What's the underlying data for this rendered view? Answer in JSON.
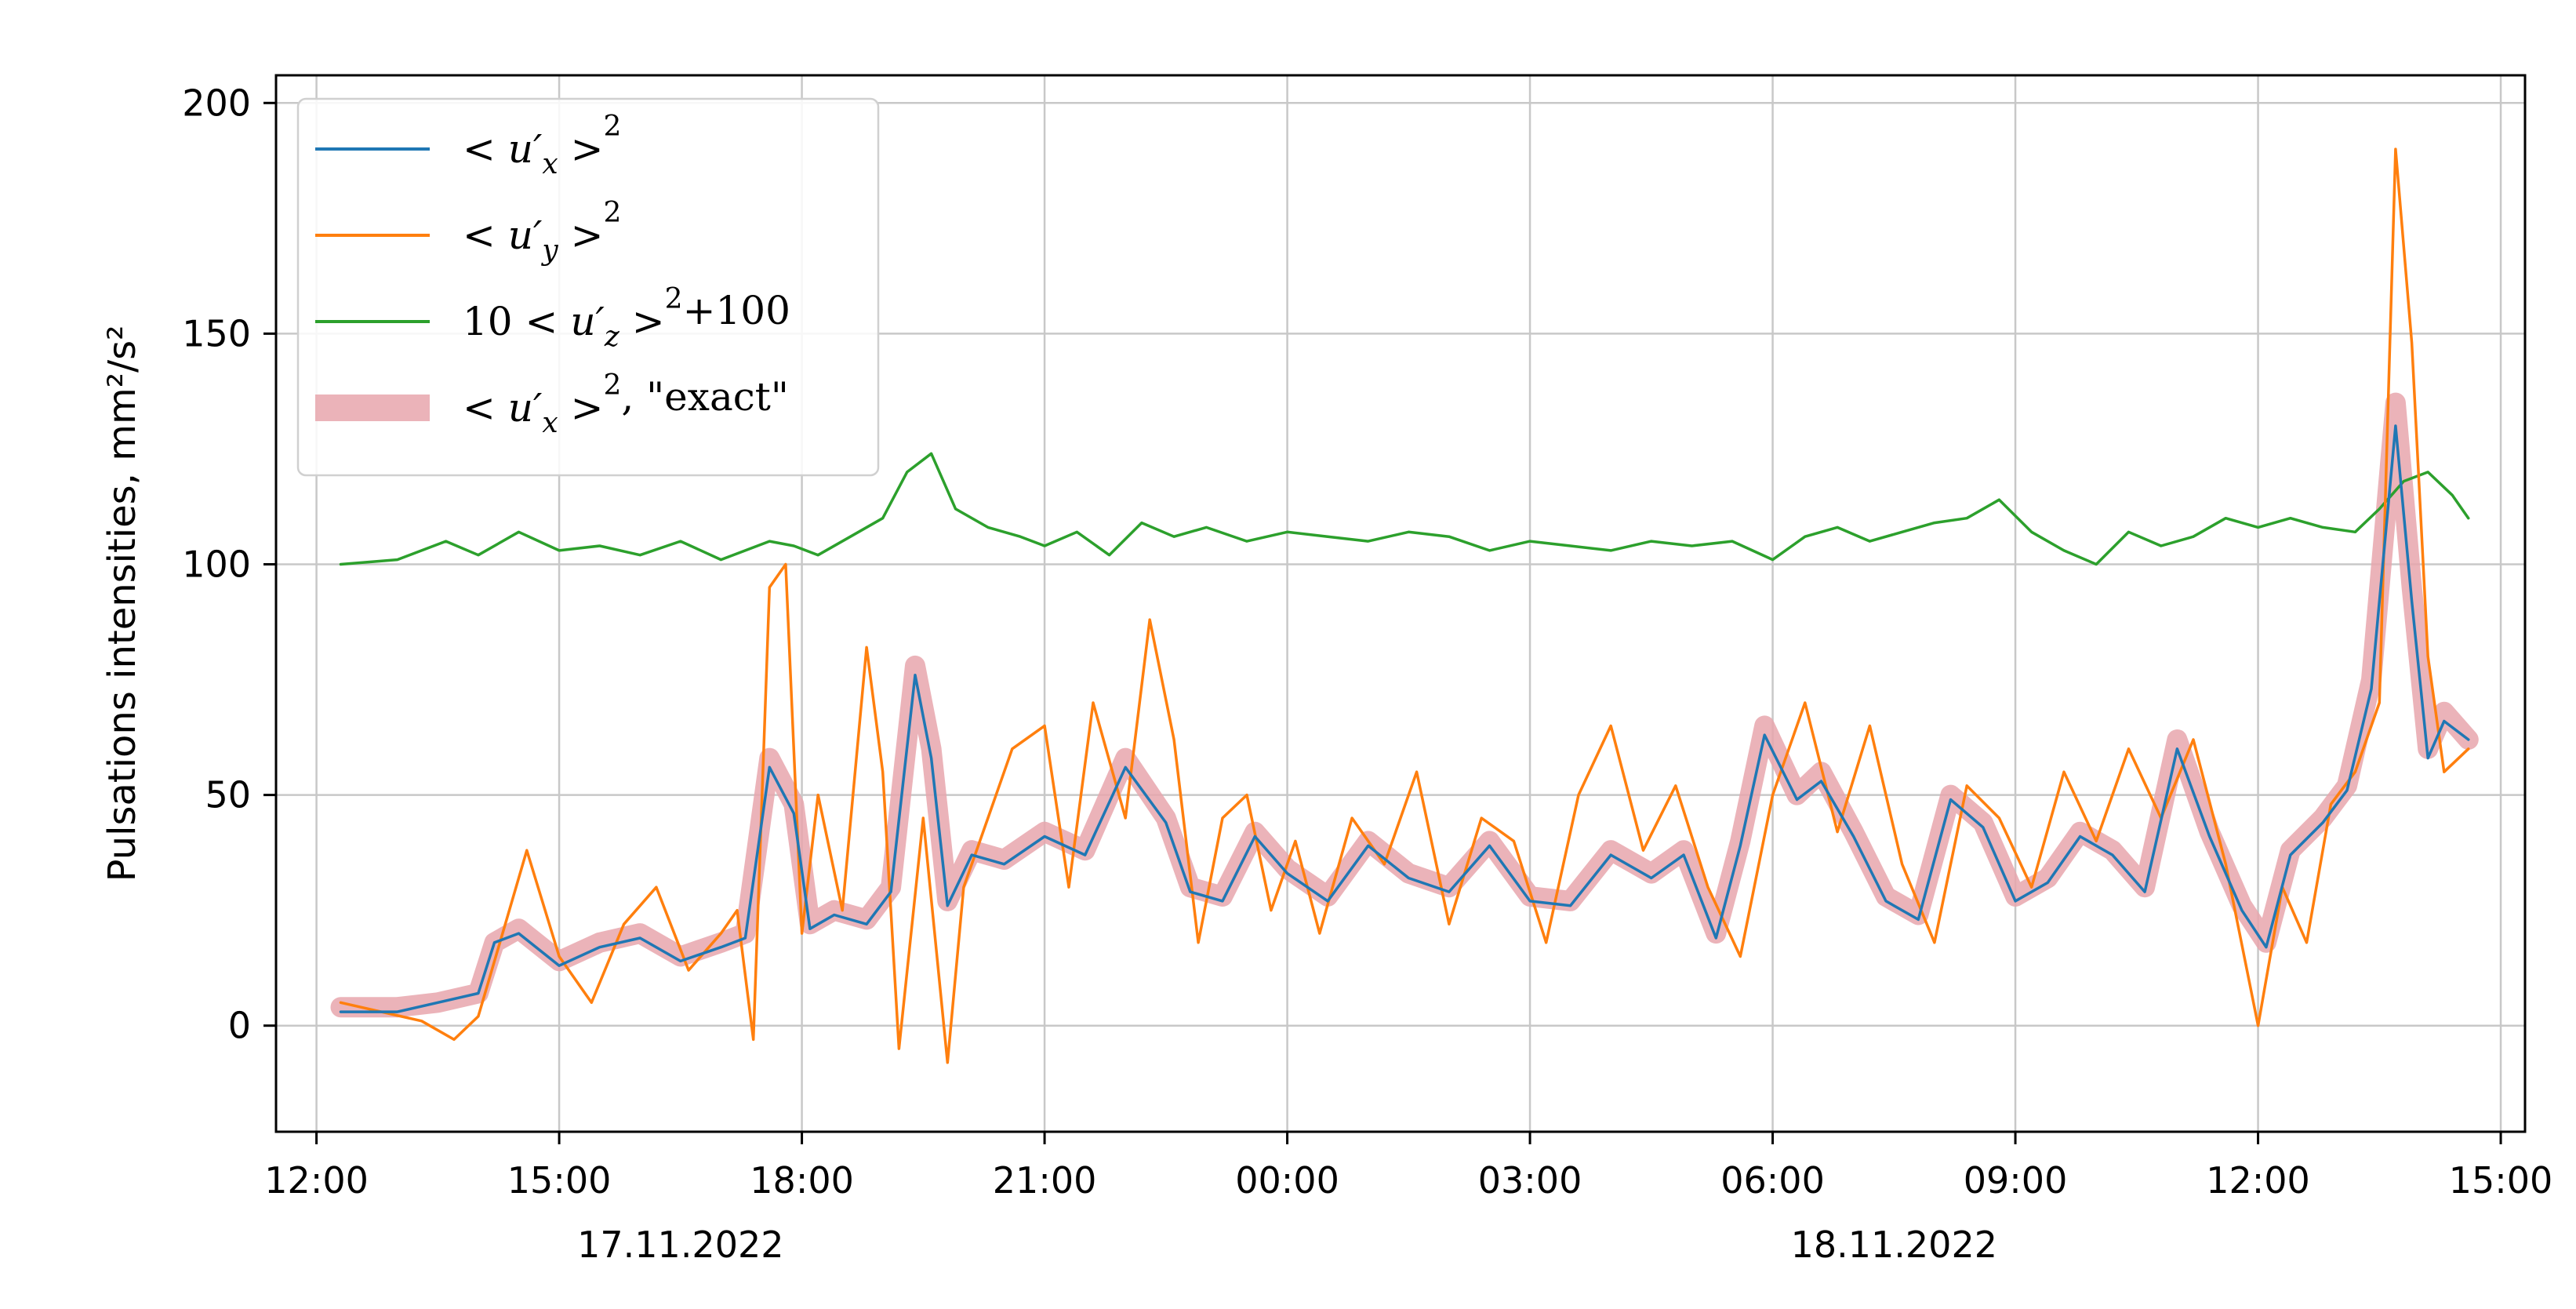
{
  "chart_data": {
    "type": "line",
    "ylabel": "Pulsations intensities, mm²/s²",
    "xlabel": "",
    "ylim": [
      -23,
      206
    ],
    "yticks": [
      0,
      50,
      100,
      150,
      200
    ],
    "xlim_hours": [
      11.5,
      39.3
    ],
    "x_unit": "hours since 17.11.2022 00:00",
    "xtick_labels": [
      "12:00",
      "15:00",
      "18:00",
      "21:00",
      "00:00",
      "03:00",
      "06:00",
      "09:00",
      "12:00",
      "15:00"
    ],
    "xtick_hours": [
      12,
      15,
      18,
      21,
      24,
      27,
      30,
      33,
      36,
      39
    ],
    "date_labels": [
      {
        "text": "17.11.2022",
        "at_hours": 16.5
      },
      {
        "text": "18.11.2022",
        "at_hours": 31.5
      }
    ],
    "grid": true,
    "legend_position": "top-left",
    "colors": {
      "ux": "#1f77b4",
      "uy": "#ff7f0e",
      "uz": "#2ca02c",
      "exact": "#e8a6ad"
    },
    "series": [
      {
        "name": "< u'x >², \"exact\"",
        "key": "exact",
        "x": [
          12.3,
          13.0,
          13.5,
          14.0,
          14.2,
          14.5,
          15.0,
          15.5,
          16.0,
          16.5,
          17.0,
          17.3,
          17.6,
          17.9,
          18.1,
          18.4,
          18.8,
          19.1,
          19.4,
          19.6,
          19.8,
          20.1,
          20.5,
          21.0,
          21.5,
          22.0,
          22.5,
          22.8,
          23.2,
          23.6,
          24.0,
          24.5,
          25.0,
          25.5,
          26.0,
          26.5,
          27.0,
          27.5,
          28.0,
          28.5,
          28.9,
          29.3,
          29.6,
          29.9,
          30.3,
          30.6,
          31.0,
          31.4,
          31.8,
          32.2,
          32.6,
          33.0,
          33.4,
          33.8,
          34.2,
          34.6,
          35.0,
          35.4,
          35.8,
          36.1,
          36.4,
          36.8,
          37.1,
          37.4,
          37.7,
          37.9,
          38.1,
          38.3,
          38.6
        ],
        "values": [
          4,
          4,
          5,
          7,
          18,
          21,
          14,
          18,
          20,
          15,
          18,
          20,
          58,
          48,
          22,
          25,
          23,
          30,
          78,
          60,
          27,
          38,
          36,
          42,
          38,
          58,
          45,
          30,
          28,
          42,
          34,
          28,
          40,
          33,
          30,
          40,
          28,
          27,
          38,
          33,
          38,
          20,
          40,
          65,
          50,
          55,
          42,
          28,
          24,
          50,
          44,
          28,
          32,
          42,
          38,
          30,
          62,
          42,
          26,
          18,
          38,
          45,
          52,
          75,
          135,
          95,
          60,
          68,
          62
        ]
      },
      {
        "name": "< u'x >²",
        "key": "ux",
        "x": [
          12.3,
          13.0,
          13.5,
          14.0,
          14.2,
          14.5,
          15.0,
          15.5,
          16.0,
          16.5,
          17.0,
          17.3,
          17.6,
          17.9,
          18.1,
          18.4,
          18.8,
          19.1,
          19.4,
          19.6,
          19.8,
          20.1,
          20.5,
          21.0,
          21.5,
          22.0,
          22.5,
          22.8,
          23.2,
          23.6,
          24.0,
          24.5,
          25.0,
          25.5,
          26.0,
          26.5,
          27.0,
          27.5,
          28.0,
          28.5,
          28.9,
          29.3,
          29.6,
          29.9,
          30.3,
          30.6,
          31.0,
          31.4,
          31.8,
          32.2,
          32.6,
          33.0,
          33.4,
          33.8,
          34.2,
          34.6,
          35.0,
          35.4,
          35.8,
          36.1,
          36.4,
          36.8,
          37.1,
          37.4,
          37.7,
          37.9,
          38.1,
          38.3,
          38.6
        ],
        "values": [
          3,
          3,
          5,
          7,
          18,
          20,
          13,
          17,
          19,
          14,
          17,
          19,
          56,
          46,
          21,
          24,
          22,
          29,
          76,
          58,
          26,
          37,
          35,
          41,
          37,
          56,
          44,
          29,
          27,
          41,
          33,
          27,
          39,
          32,
          29,
          39,
          27,
          26,
          37,
          32,
          37,
          19,
          39,
          63,
          49,
          53,
          41,
          27,
          23,
          49,
          43,
          27,
          31,
          41,
          37,
          29,
          60,
          41,
          25,
          17,
          37,
          44,
          51,
          73,
          130,
          92,
          58,
          66,
          62
        ]
      },
      {
        "name": "< u'y >²",
        "key": "uy",
        "x": [
          12.3,
          12.8,
          13.3,
          13.7,
          14.0,
          14.3,
          14.6,
          15.0,
          15.4,
          15.8,
          16.2,
          16.6,
          17.0,
          17.2,
          17.4,
          17.6,
          17.8,
          18.0,
          18.2,
          18.5,
          18.8,
          19.0,
          19.2,
          19.5,
          19.8,
          20.0,
          20.3,
          20.6,
          21.0,
          21.3,
          21.6,
          22.0,
          22.3,
          22.6,
          22.9,
          23.2,
          23.5,
          23.8,
          24.1,
          24.4,
          24.8,
          25.2,
          25.6,
          26.0,
          26.4,
          26.8,
          27.2,
          27.6,
          28.0,
          28.4,
          28.8,
          29.2,
          29.6,
          30.0,
          30.4,
          30.8,
          31.2,
          31.6,
          32.0,
          32.4,
          32.8,
          33.2,
          33.6,
          34.0,
          34.4,
          34.8,
          35.2,
          35.6,
          36.0,
          36.3,
          36.6,
          36.9,
          37.2,
          37.5,
          37.7,
          37.9,
          38.1,
          38.3,
          38.6
        ],
        "values": [
          5,
          3,
          1,
          -3,
          2,
          20,
          38,
          15,
          5,
          22,
          30,
          12,
          20,
          25,
          -3,
          95,
          100,
          20,
          50,
          25,
          82,
          55,
          -5,
          45,
          -8,
          30,
          45,
          60,
          65,
          30,
          70,
          45,
          88,
          62,
          18,
          45,
          50,
          25,
          40,
          20,
          45,
          35,
          55,
          22,
          45,
          40,
          18,
          50,
          65,
          38,
          52,
          30,
          15,
          50,
          70,
          42,
          65,
          35,
          18,
          52,
          45,
          30,
          55,
          40,
          60,
          45,
          62,
          35,
          0,
          30,
          18,
          48,
          55,
          70,
          190,
          148,
          80,
          55,
          60
        ]
      },
      {
        "name": "10 < u'z >² + 100",
        "key": "uz",
        "x": [
          12.3,
          13.0,
          13.6,
          14.0,
          14.5,
          15.0,
          15.5,
          16.0,
          16.5,
          17.0,
          17.3,
          17.6,
          17.9,
          18.2,
          18.6,
          19.0,
          19.3,
          19.6,
          19.9,
          20.3,
          20.7,
          21.0,
          21.4,
          21.8,
          22.2,
          22.6,
          23.0,
          23.5,
          24.0,
          24.5,
          25.0,
          25.5,
          26.0,
          26.5,
          27.0,
          27.5,
          28.0,
          28.5,
          29.0,
          29.5,
          30.0,
          30.4,
          30.8,
          31.2,
          31.6,
          32.0,
          32.4,
          32.8,
          33.2,
          33.6,
          34.0,
          34.4,
          34.8,
          35.2,
          35.6,
          36.0,
          36.4,
          36.8,
          37.2,
          37.5,
          37.8,
          38.1,
          38.4,
          38.6
        ],
        "values": [
          100,
          101,
          105,
          102,
          107,
          103,
          104,
          102,
          105,
          101,
          103,
          105,
          104,
          102,
          106,
          110,
          120,
          124,
          112,
          108,
          106,
          104,
          107,
          102,
          109,
          106,
          108,
          105,
          107,
          106,
          105,
          107,
          106,
          103,
          105,
          104,
          103,
          105,
          104,
          105,
          101,
          106,
          108,
          105,
          107,
          109,
          110,
          114,
          107,
          103,
          100,
          107,
          104,
          106,
          110,
          108,
          110,
          108,
          107,
          112,
          118,
          120,
          115,
          110
        ]
      }
    ],
    "legend": [
      {
        "key": "ux",
        "label_main": "< u",
        "sub": "x",
        "label_tail": " >",
        "sup": "2",
        "suffix": ""
      },
      {
        "key": "uy",
        "label_main": "< u",
        "sub": "y",
        "label_tail": " >",
        "sup": "2",
        "suffix": ""
      },
      {
        "key": "uz",
        "label_prefix": "10 ",
        "label_main": "< u",
        "sub": "z",
        "label_tail": " >",
        "sup": "2",
        "suffix": "+100"
      },
      {
        "key": "exact",
        "label_main": "< u",
        "sub": "x",
        "label_tail": " >",
        "sup": "2",
        "suffix": ", \"exact\""
      }
    ]
  }
}
